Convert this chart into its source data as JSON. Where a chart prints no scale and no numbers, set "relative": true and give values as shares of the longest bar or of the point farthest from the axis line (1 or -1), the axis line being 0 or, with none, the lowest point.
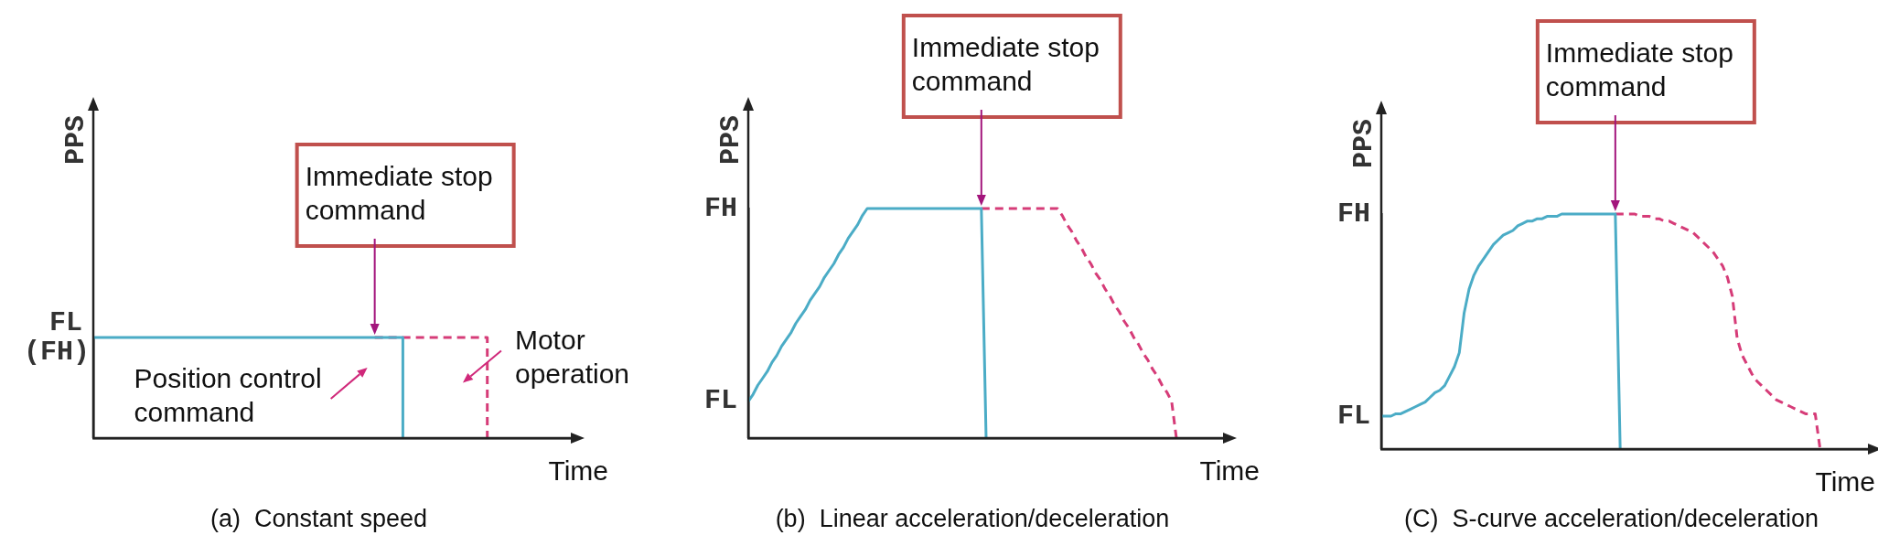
{
  "chart_data": [
    {
      "type": "step",
      "title": "(a)  Constant speed",
      "xlabel": "Time",
      "ylabel": "PPS",
      "relative": true,
      "tick_labels": false,
      "line_style": "solid",
      "categories": [
        null,
        null,
        null,
        null,
        null,
        null,
        null,
        null,
        null,
        null,
        null,
        null,
        null,
        null,
        null,
        null,
        null,
        null
      ],
      "series": [
        {
          "color": "#4bacc6",
          "values": [
            1,
            1,
            1,
            1,
            1,
            1,
            1,
            1,
            1,
            1,
            1,
            0,
            null,
            null,
            null,
            null,
            null,
            null
          ]
        },
        {
          "color": "#d63c78",
          "line_style": "dashed",
          "values": [
            null,
            null,
            null,
            null,
            null,
            null,
            null,
            null,
            null,
            null,
            1,
            1,
            1,
            1,
            0,
            null,
            null,
            null
          ]
        }
      ],
      "annotations": [
        "FL\n(FH)",
        "Immediate stop command",
        "Position control command",
        "Motor operation"
      ]
    },
    {
      "type": "line",
      "title": "(b)  Linear acceleration/deceleration",
      "xlabel": "Time",
      "ylabel": "PPS",
      "relative": true,
      "tick_labels": false,
      "line_style": "solid",
      "categories": [
        null,
        null,
        null,
        null,
        null,
        null,
        null,
        null,
        null,
        null,
        null,
        null,
        null,
        null,
        null,
        null,
        null,
        null,
        null,
        null,
        null,
        null,
        null,
        null,
        null,
        null,
        null,
        null,
        null,
        null,
        null,
        null,
        null,
        null,
        null,
        null,
        null,
        null,
        null,
        null,
        null,
        null,
        null,
        null,
        null,
        null,
        null,
        null,
        null,
        null,
        null,
        null,
        null,
        null,
        null,
        null,
        null,
        null,
        null,
        null,
        null,
        null,
        null,
        null,
        null,
        null,
        null,
        null,
        null,
        null,
        null,
        null,
        null,
        null,
        null,
        null,
        null,
        null,
        null,
        null,
        null,
        null,
        null,
        null,
        null,
        null,
        null,
        null,
        null,
        null,
        null,
        null,
        null,
        null,
        null,
        null,
        null,
        null,
        null,
        null,
        null
      ],
      "series": [
        {
          "color": "#4bacc6",
          "values": [
            0.16,
            0.19,
            0.23,
            0.26,
            0.29,
            0.33,
            0.36,
            0.4,
            0.43,
            0.46,
            0.5,
            0.53,
            0.56,
            0.6,
            0.63,
            0.66,
            0.7,
            0.73,
            0.76,
            0.8,
            0.83,
            0.87,
            0.9,
            0.93,
            0.97,
            1,
            1,
            1,
            1,
            1,
            1,
            1,
            1,
            1,
            1,
            1,
            1,
            1,
            1,
            1,
            1,
            1,
            1,
            1,
            1,
            1,
            1,
            1,
            1,
            1,
            0,
            null,
            null,
            null,
            null,
            null,
            null,
            null,
            null,
            null,
            null,
            null,
            null,
            null,
            null,
            null,
            null,
            null,
            null,
            null,
            null,
            null,
            null,
            null,
            null,
            null,
            null,
            null,
            null,
            null,
            null,
            null,
            null,
            null,
            null,
            null,
            null,
            null,
            null,
            null,
            null,
            null,
            null,
            null,
            null,
            null,
            null,
            null,
            null,
            null,
            null
          ]
        },
        {
          "color": "#d63c78",
          "line_style": "dashed",
          "values": [
            null,
            null,
            null,
            null,
            null,
            null,
            null,
            null,
            null,
            null,
            null,
            null,
            null,
            null,
            null,
            null,
            null,
            null,
            null,
            null,
            null,
            null,
            null,
            null,
            null,
            null,
            null,
            null,
            null,
            null,
            null,
            null,
            null,
            null,
            null,
            null,
            null,
            null,
            null,
            null,
            null,
            null,
            null,
            null,
            null,
            null,
            null,
            null,
            null,
            1,
            1,
            1,
            1,
            1,
            1,
            1,
            1,
            1,
            1,
            1,
            1,
            1,
            1,
            1,
            1,
            1,
            0.97,
            0.93,
            0.9,
            0.86,
            0.83,
            0.79,
            0.76,
            0.72,
            0.69,
            0.65,
            0.62,
            0.58,
            0.55,
            0.51,
            0.48,
            0.44,
            0.41,
            0.37,
            0.34,
            0.3,
            0.27,
            0.23,
            0.2,
            0.16,
            0,
            null,
            null,
            null,
            null,
            null,
            null,
            null,
            null,
            null,
            null
          ]
        }
      ],
      "annotations": [
        "FH",
        "FL",
        "Immediate stop command"
      ]
    },
    {
      "type": "line",
      "title": "(C)  S-curve acceleration/deceleration",
      "xlabel": "Time",
      "ylabel": "PPS",
      "relative": true,
      "tick_labels": false,
      "line_style": "solid",
      "categories": [
        null,
        null,
        null,
        null,
        null,
        null,
        null,
        null,
        null,
        null,
        null,
        null,
        null,
        null,
        null,
        null,
        null,
        null,
        null,
        null,
        null,
        null,
        null,
        null,
        null,
        null,
        null,
        null,
        null,
        null,
        null,
        null,
        null,
        null,
        null,
        null,
        null,
        null,
        null,
        null,
        null,
        null,
        null,
        null,
        null,
        null,
        null,
        null,
        null,
        null,
        null,
        null,
        null,
        null,
        null,
        null,
        null,
        null,
        null,
        null,
        null,
        null,
        null,
        null,
        null,
        null,
        null,
        null,
        null,
        null,
        null,
        null,
        null,
        null,
        null,
        null,
        null,
        null,
        null,
        null,
        null,
        null,
        null,
        null,
        null,
        null,
        null,
        null,
        null,
        null,
        null,
        null,
        null,
        null,
        null,
        null,
        null,
        null,
        null,
        null,
        null
      ],
      "series": [
        {
          "color": "#4bacc6",
          "values": [
            0.14,
            0.14,
            0.14,
            0.15,
            0.15,
            0.16,
            0.17,
            0.18,
            0.19,
            0.2,
            0.22,
            0.24,
            0.25,
            0.27,
            0.31,
            0.35,
            0.41,
            0.58,
            0.68,
            0.74,
            0.78,
            0.81,
            0.84,
            0.87,
            0.89,
            0.91,
            0.92,
            0.93,
            0.95,
            0.96,
            0.97,
            0.97,
            0.98,
            0.98,
            0.99,
            0.99,
            0.99,
            1,
            1,
            1,
            1,
            1,
            1,
            1,
            1,
            1,
            1,
            1,
            1,
            0,
            null,
            null,
            null,
            null,
            null,
            null,
            null,
            null,
            null,
            null,
            null,
            null,
            null,
            null,
            null,
            null,
            null,
            null,
            null,
            null,
            null,
            null,
            null,
            null,
            null,
            null,
            null,
            null,
            null,
            null,
            null,
            null,
            null,
            null,
            null,
            null,
            null,
            null,
            null,
            null,
            null,
            null,
            null,
            null,
            null,
            null,
            null,
            null,
            null,
            null,
            null
          ]
        },
        {
          "color": "#d63c78",
          "line_style": "dashed",
          "values": [
            null,
            null,
            null,
            null,
            null,
            null,
            null,
            null,
            null,
            null,
            null,
            null,
            null,
            null,
            null,
            null,
            null,
            null,
            null,
            null,
            null,
            null,
            null,
            null,
            null,
            null,
            null,
            null,
            null,
            null,
            null,
            null,
            null,
            null,
            null,
            null,
            null,
            null,
            null,
            null,
            null,
            null,
            null,
            null,
            null,
            null,
            null,
            null,
            1,
            1,
            1,
            1,
            1,
            0.99,
            0.99,
            0.99,
            0.98,
            0.98,
            0.97,
            0.97,
            0.96,
            0.95,
            0.94,
            0.93,
            0.92,
            0.9,
            0.88,
            0.86,
            0.84,
            0.81,
            0.78,
            0.73,
            0.65,
            0.47,
            0.4,
            0.36,
            0.32,
            0.29,
            0.27,
            0.25,
            0.23,
            0.21,
            0.2,
            0.19,
            0.18,
            0.17,
            0.16,
            0.15,
            0.15,
            0.15,
            0,
            null,
            null,
            null,
            null,
            null,
            null,
            null,
            null,
            null,
            null
          ]
        }
      ],
      "annotations": [
        "FH",
        "FL",
        "Immediate stop command"
      ]
    }
  ]
}
